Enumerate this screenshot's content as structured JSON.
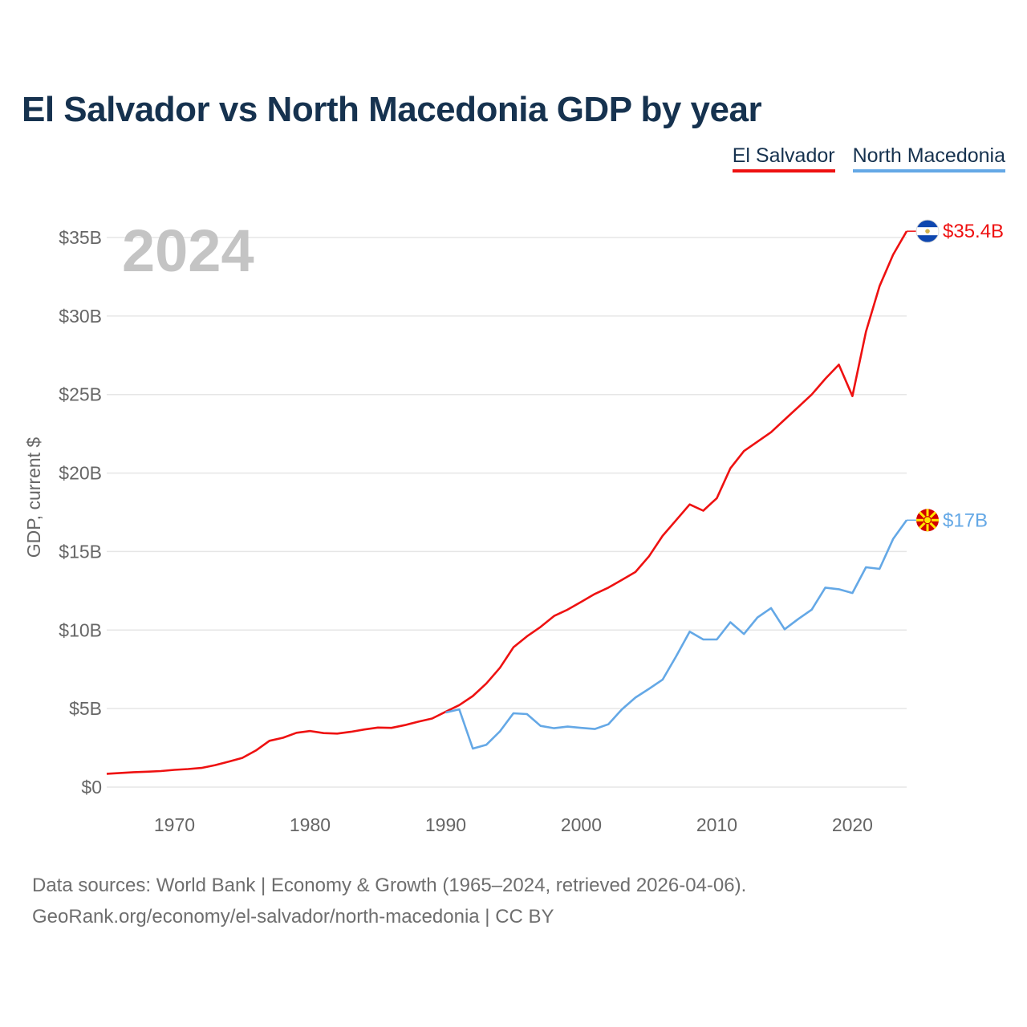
{
  "title": "El Salvador vs North Macedonia GDP by year",
  "legend": [
    {
      "label": "El Salvador",
      "color": "#ee1111"
    },
    {
      "label": "North Macedonia",
      "color": "#64a8e6"
    }
  ],
  "footer": {
    "line1": "Data sources: World Bank | Economy & Growth (1965–2024, retrieved 2026-04-06).",
    "line2": "GeoRank.org/economy/el-salvador/north-macedonia | CC BY"
  },
  "chart_data": {
    "type": "line",
    "title": "El Salvador vs North Macedonia GDP by year",
    "watermark": "2024",
    "ylabel": "GDP, current $",
    "xlabel": "",
    "xlim": [
      1965,
      2024
    ],
    "ylim": [
      0,
      35
    ],
    "x_ticks": [
      1970,
      1980,
      1990,
      2000,
      2010,
      2020
    ],
    "y_ticks": [
      {
        "value": 0,
        "label": "$0"
      },
      {
        "value": 5,
        "label": "$5B"
      },
      {
        "value": 10,
        "label": "$10B"
      },
      {
        "value": 15,
        "label": "$15B"
      },
      {
        "value": 20,
        "label": "$20B"
      },
      {
        "value": 25,
        "label": "$25B"
      },
      {
        "value": 30,
        "label": "$30B"
      },
      {
        "value": 35,
        "label": "$35B"
      }
    ],
    "grid": true,
    "legend_position": "top-right",
    "series": [
      {
        "name": "El Salvador",
        "color": "#ee1111",
        "end_label": "$35.4B",
        "flag_icon": "el-salvador-flag-icon",
        "x": [
          1965,
          1966,
          1967,
          1968,
          1969,
          1970,
          1971,
          1972,
          1973,
          1974,
          1975,
          1976,
          1977,
          1978,
          1979,
          1980,
          1981,
          1982,
          1983,
          1984,
          1985,
          1986,
          1987,
          1988,
          1989,
          1990,
          1991,
          1992,
          1993,
          1994,
          1995,
          1996,
          1997,
          1998,
          1999,
          2000,
          2001,
          2002,
          2003,
          2004,
          2005,
          2006,
          2007,
          2008,
          2009,
          2010,
          2011,
          2012,
          2013,
          2014,
          2015,
          2016,
          2017,
          2018,
          2019,
          2020,
          2021,
          2022,
          2023,
          2024
        ],
        "values": [
          0.85,
          0.9,
          0.95,
          0.98,
          1.02,
          1.1,
          1.15,
          1.22,
          1.4,
          1.62,
          1.86,
          2.33,
          2.95,
          3.14,
          3.46,
          3.57,
          3.44,
          3.41,
          3.52,
          3.67,
          3.79,
          3.77,
          3.95,
          4.17,
          4.37,
          4.8,
          5.22,
          5.8,
          6.6,
          7.6,
          8.9,
          9.6,
          10.2,
          10.9,
          11.3,
          11.8,
          12.3,
          12.7,
          13.2,
          13.7,
          14.7,
          16.0,
          17.0,
          18.0,
          17.6,
          18.4,
          20.3,
          21.4,
          22.0,
          22.6,
          23.4,
          24.2,
          25.0,
          26.0,
          26.9,
          24.9,
          29.0,
          31.9,
          33.9,
          35.4
        ]
      },
      {
        "name": "North Macedonia",
        "color": "#64a8e6",
        "end_label": "$17B",
        "flag_icon": "north-macedonia-flag-icon",
        "x": [
          1990,
          1991,
          1992,
          1993,
          1994,
          1995,
          1996,
          1997,
          1998,
          1999,
          2000,
          2001,
          2002,
          2003,
          2004,
          2005,
          2006,
          2007,
          2008,
          2009,
          2010,
          2011,
          2012,
          2013,
          2014,
          2015,
          2016,
          2017,
          2018,
          2019,
          2020,
          2021,
          2022,
          2023,
          2024
        ],
        "values": [
          4.75,
          4.95,
          2.45,
          2.7,
          3.55,
          4.7,
          4.65,
          3.9,
          3.75,
          3.85,
          3.77,
          3.7,
          4.0,
          4.95,
          5.7,
          6.26,
          6.84,
          8.33,
          9.9,
          9.4,
          9.4,
          10.5,
          9.75,
          10.8,
          11.4,
          10.05,
          10.7,
          11.3,
          12.7,
          12.6,
          12.36,
          14.0,
          13.9,
          15.8,
          17.0
        ]
      }
    ]
  }
}
